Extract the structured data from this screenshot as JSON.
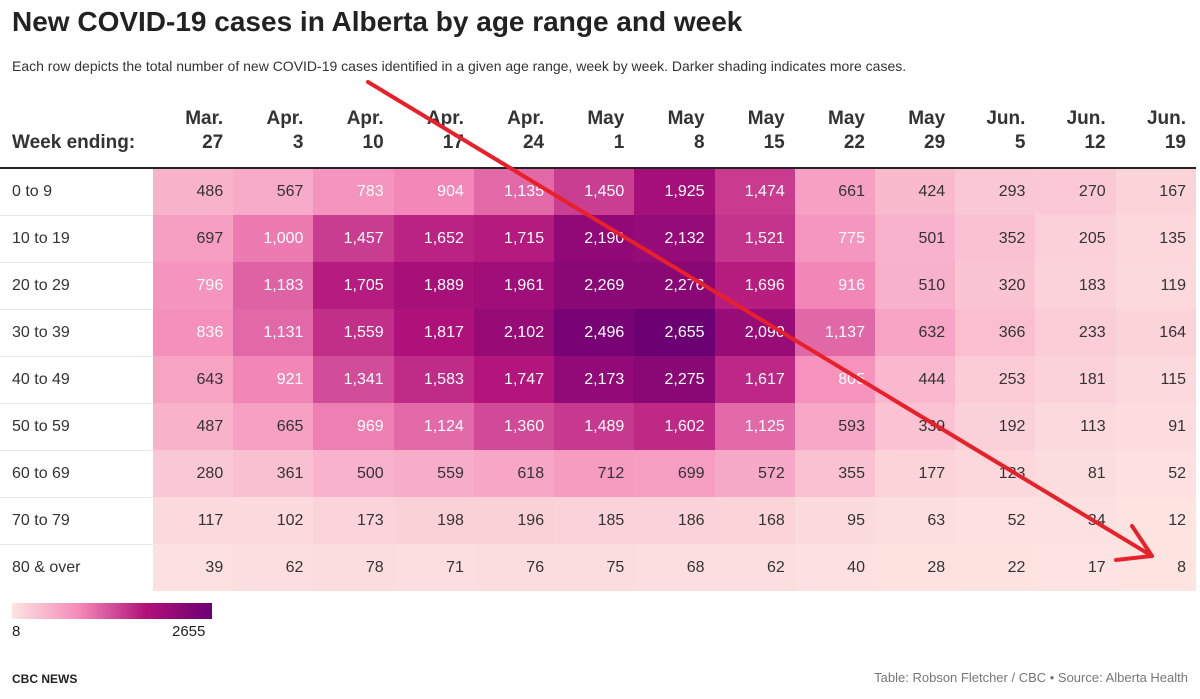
{
  "title": "New COVID-19 cases in Alberta by age range and week",
  "subtitle": "Each row depicts the total number of new COVID-19 cases identified in a given age range, week by week. Darker shading indicates more cases.",
  "footer": {
    "left": "CBC NEWS",
    "right": "Table: Robson Fletcher / CBC • Source: Alberta Health"
  },
  "legend": {
    "min": "8",
    "max": "2655"
  },
  "colors": {
    "low": "#fde4e1",
    "mid": "#f48ab9",
    "high": "#b1127a",
    "max": "#6c0073",
    "arrow": "#e8202a"
  },
  "chart_data": {
    "type": "heatmap",
    "title": "New COVID-19 cases in Alberta by age range and week",
    "row_header": "Week ending:",
    "columns": [
      [
        "Mar.",
        "27"
      ],
      [
        "Apr.",
        "3"
      ],
      [
        "Apr.",
        "10"
      ],
      [
        "Apr.",
        "17"
      ],
      [
        "Apr.",
        "24"
      ],
      [
        "May",
        "1"
      ],
      [
        "May",
        "8"
      ],
      [
        "May",
        "15"
      ],
      [
        "May",
        "22"
      ],
      [
        "May",
        "29"
      ],
      [
        "Jun.",
        "5"
      ],
      [
        "Jun.",
        "12"
      ],
      [
        "Jun.",
        "19"
      ]
    ],
    "rows": [
      {
        "label": "0 to 9",
        "values": [
          486,
          567,
          783,
          904,
          1135,
          1450,
          1925,
          1474,
          661,
          424,
          293,
          270,
          167
        ]
      },
      {
        "label": "10 to 19",
        "values": [
          697,
          1000,
          1457,
          1652,
          1715,
          2190,
          2132,
          1521,
          775,
          501,
          352,
          205,
          135
        ]
      },
      {
        "label": "20 to 29",
        "values": [
          796,
          1183,
          1705,
          1889,
          1961,
          2269,
          2276,
          1696,
          916,
          510,
          320,
          183,
          119
        ]
      },
      {
        "label": "30 to 39",
        "values": [
          836,
          1131,
          1559,
          1817,
          2102,
          2496,
          2655,
          2090,
          1137,
          632,
          366,
          233,
          164
        ]
      },
      {
        "label": "40 to 49",
        "values": [
          643,
          921,
          1341,
          1583,
          1747,
          2173,
          2275,
          1617,
          805,
          444,
          253,
          181,
          115
        ]
      },
      {
        "label": "50 to 59",
        "values": [
          487,
          665,
          969,
          1124,
          1360,
          1489,
          1602,
          1125,
          593,
          339,
          192,
          113,
          91
        ]
      },
      {
        "label": "60 to 69",
        "values": [
          280,
          361,
          500,
          559,
          618,
          712,
          699,
          572,
          355,
          177,
          123,
          81,
          52
        ]
      },
      {
        "label": "70 to 79",
        "values": [
          117,
          102,
          173,
          198,
          196,
          185,
          186,
          168,
          95,
          63,
          52,
          34,
          12
        ]
      },
      {
        "label": "80 & over",
        "values": [
          39,
          62,
          78,
          71,
          76,
          75,
          68,
          62,
          40,
          28,
          22,
          17,
          8
        ]
      }
    ],
    "color_scale": {
      "min": 8,
      "max": 2655
    }
  }
}
